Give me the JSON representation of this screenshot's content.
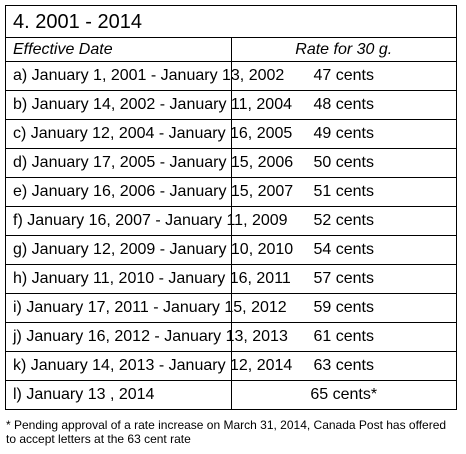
{
  "title": "4. 2001 - 2014",
  "headers": {
    "date": "Effective Date",
    "rate": "Rate for 30 g."
  },
  "rows": [
    {
      "date": "a) January 1, 2001 - January 13, 2002",
      "rate": "47 cents"
    },
    {
      "date": "b) January 14, 2002 - January 11, 2004",
      "rate": "48 cents"
    },
    {
      "date": "c) January 12, 2004 - January 16, 2005",
      "rate": "49 cents"
    },
    {
      "date": "d) January 17, 2005 - January 15, 2006",
      "rate": "50 cents"
    },
    {
      "date": "e) January 16, 2006 - January 15, 2007",
      "rate": "51 cents"
    },
    {
      "date": "f) January 16, 2007 - January 11, 2009",
      "rate": "52 cents"
    },
    {
      "date": "g) January 12, 2009 - January 10, 2010",
      "rate": "54 cents"
    },
    {
      "date": "h) January 11, 2010 - January 16, 2011",
      "rate": "57 cents"
    },
    {
      "date": "i) January 17, 2011 - January 15, 2012",
      "rate": "59 cents"
    },
    {
      "date": "j) January 16, 2012 - January 13, 2013",
      "rate": "61 cents"
    },
    {
      "date": "k) January 14, 2013 - January 12, 2014",
      "rate": "63 cents"
    },
    {
      "date": "l) January 13 , 2014",
      "rate": "65 cents*"
    }
  ],
  "footnote": "* Pending approval of a rate increase on March 31, 2014, Canada Post has offered to accept letters at the 63 cent rate"
}
